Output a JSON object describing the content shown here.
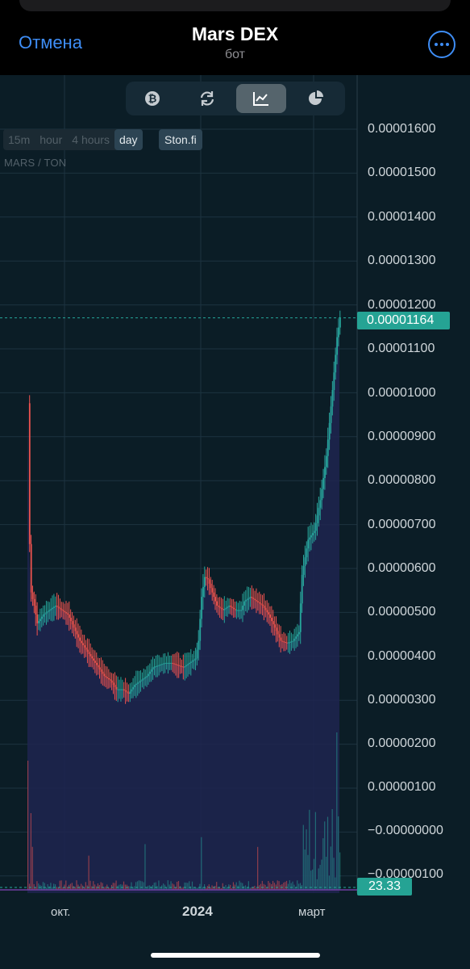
{
  "header": {
    "cancel_label": "Отмена",
    "title": "Mars DEX",
    "subtitle": "бот"
  },
  "toolbar": {
    "buttons": [
      {
        "icon": "bitcoin-icon",
        "active": false
      },
      {
        "icon": "swap-refresh-icon",
        "active": false
      },
      {
        "icon": "chart-line-icon",
        "active": true
      },
      {
        "icon": "pie-chart-icon",
        "active": false
      }
    ]
  },
  "timeframes": {
    "items": [
      "15m",
      "hour",
      "4 hours",
      "day"
    ],
    "selected": "day",
    "source_label": "Ston.fi"
  },
  "pair_label": "MARS / TON",
  "price_axis": {
    "labels": [
      "0.00001600",
      "0.00001500",
      "0.00001400",
      "0.00001300",
      "0.00001200",
      "0.00001100",
      "0.00001000",
      "0.00000900",
      "0.00000800",
      "0.00000700",
      "0.00000600",
      "0.00000500",
      "0.00000400",
      "0.00000300",
      "0.00000200",
      "0.00000100",
      "−0.00000000",
      "−0.00000100"
    ]
  },
  "current_price_label": "0.00001164",
  "volume_label": "23.33",
  "time_axis": {
    "labels": [
      "окт.",
      "2024",
      "март"
    ]
  },
  "colors": {
    "up": "#26a69a",
    "down": "#ef5350",
    "accent": "#3e8df5",
    "background": "#0b1d26",
    "area_fill": "#1f2550"
  },
  "chart_data": {
    "type": "candlestick",
    "interval": "day",
    "pair": "MARS / TON",
    "ylim": [
      -1e-06,
      1.6e-05
    ],
    "last_price": 1.164e-05,
    "last_volume": 23.33,
    "close_series": [
      [
        0,
        9.7e-06
      ],
      [
        1,
        6.5e-06
      ],
      [
        2,
        5.4e-06
      ],
      [
        4,
        5.1e-06
      ],
      [
        6,
        4.7e-06
      ],
      [
        10,
        4.9e-06
      ],
      [
        14,
        5e-06
      ],
      [
        18,
        5.1e-06
      ],
      [
        22,
        5e-06
      ],
      [
        26,
        4.9e-06
      ],
      [
        30,
        4.6e-06
      ],
      [
        34,
        4.3e-06
      ],
      [
        38,
        4.1e-06
      ],
      [
        42,
        3.9e-06
      ],
      [
        46,
        3.7e-06
      ],
      [
        50,
        3.5e-06
      ],
      [
        54,
        3.4e-06
      ],
      [
        58,
        3.2e-06
      ],
      [
        62,
        3.2e-06
      ],
      [
        66,
        3.1e-06
      ],
      [
        70,
        3.3e-06
      ],
      [
        74,
        3.4e-06
      ],
      [
        78,
        3.5e-06
      ],
      [
        82,
        3.7e-06
      ],
      [
        86,
        3.75e-06
      ],
      [
        90,
        3.8e-06
      ],
      [
        94,
        3.8e-06
      ],
      [
        98,
        3.75e-06
      ],
      [
        102,
        3.7e-06
      ],
      [
        106,
        3.8e-06
      ],
      [
        110,
        3.9e-06
      ],
      [
        112,
        4.3e-06
      ],
      [
        114,
        5.3e-06
      ],
      [
        116,
        5.75e-06
      ],
      [
        118,
        5.7e-06
      ],
      [
        120,
        5.5e-06
      ],
      [
        124,
        5.1e-06
      ],
      [
        128,
        5e-06
      ],
      [
        132,
        5.1e-06
      ],
      [
        136,
        5e-06
      ],
      [
        140,
        5e-06
      ],
      [
        142,
        5.2e-06
      ],
      [
        146,
        5.3e-06
      ],
      [
        150,
        5.2e-06
      ],
      [
        154,
        5.1e-06
      ],
      [
        158,
        4.9e-06
      ],
      [
        162,
        4.6e-06
      ],
      [
        166,
        4.3e-06
      ],
      [
        170,
        4.25e-06
      ],
      [
        174,
        4.3e-06
      ],
      [
        178,
        4.5e-06
      ],
      [
        180,
        5.8e-06
      ],
      [
        184,
        6.6e-06
      ],
      [
        188,
        6.8e-06
      ],
      [
        192,
        7.5e-06
      ],
      [
        196,
        8.5e-06
      ],
      [
        200,
        1e-05
      ],
      [
        203,
        1.12e-05
      ],
      [
        205,
        1.164e-05
      ]
    ]
  }
}
